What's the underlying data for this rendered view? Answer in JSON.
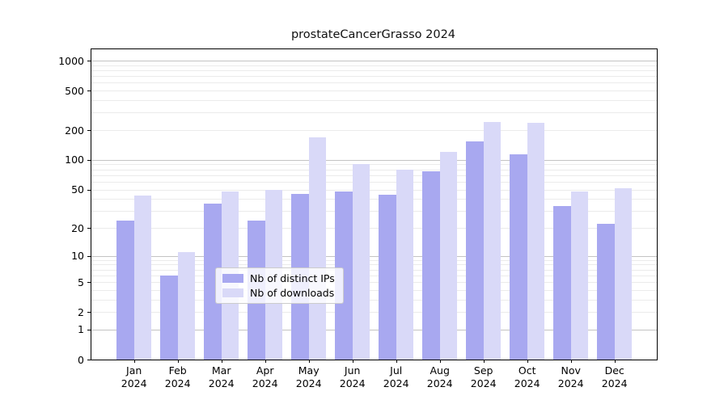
{
  "title": "prostateCancerGrasso 2024",
  "chart_data": {
    "type": "bar",
    "title": "prostateCancerGrasso 2024",
    "categories": [
      "Jan",
      "Feb",
      "Mar",
      "Apr",
      "May",
      "Jun",
      "Jul",
      "Aug",
      "Sep",
      "Oct",
      "Nov",
      "Dec"
    ],
    "year": "2024",
    "x_tick_labels": [
      "Jan\n2024",
      "Feb\n2024",
      "Mar\n2024",
      "Apr\n2024",
      "May\n2024",
      "Jun\n2024",
      "Jul\n2024",
      "Aug\n2024",
      "Sep\n2024",
      "Oct\n2024",
      "Nov\n2024",
      "Dec\n2024"
    ],
    "series": [
      {
        "name": "Nb of distinct IPs",
        "color": "#a8a8f0",
        "values": [
          24,
          6,
          36,
          24,
          45,
          48,
          44,
          77,
          153,
          114,
          34,
          22
        ]
      },
      {
        "name": "Nb of downloads",
        "color": "#d9d9f8",
        "values": [
          43,
          11,
          48,
          50,
          170,
          91,
          80,
          121,
          240,
          235,
          48,
          51
        ]
      }
    ],
    "ylabel": "",
    "xlabel": "",
    "scale": "log1p",
    "y_ticks": [
      0,
      1,
      2,
      5,
      10,
      20,
      50,
      100,
      200,
      500,
      1000
    ],
    "y_tick_labels": [
      "0",
      "1",
      "2",
      "5",
      "10",
      "20",
      "50",
      "100",
      "200",
      "500",
      "1000"
    ],
    "y_major_gridlines": [
      1,
      10,
      100,
      1000
    ],
    "y_minor_gridlines": [
      2,
      3,
      4,
      5,
      6,
      7,
      8,
      9,
      20,
      30,
      40,
      50,
      60,
      70,
      80,
      90,
      200,
      300,
      400,
      500,
      600,
      700,
      800,
      900
    ],
    "ylim": [
      0,
      1300
    ],
    "grid": true,
    "legend_position": "bottom-center",
    "colors": {
      "distinct_ips_bar": "#a8a8f0",
      "downloads_bar": "#d9d9f8",
      "major_grid": "#c3c3c3",
      "minor_grid": "#ebebeb",
      "spine": "#000000",
      "background": "#ffffff"
    }
  }
}
